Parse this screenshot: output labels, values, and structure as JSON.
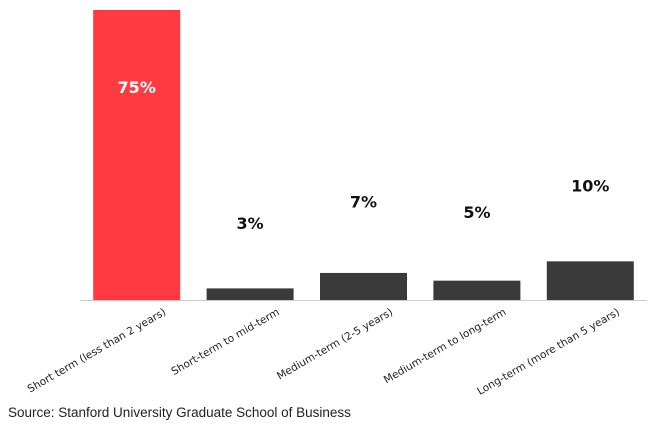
{
  "chart_data": {
    "type": "bar",
    "categories": [
      "Short term (less than 2 years)",
      "Short-term to mid-term",
      "Medium-term (2-5 years)",
      "Medium-term to long-term",
      "Long-term (more than 5 years)"
    ],
    "values": [
      75,
      3,
      7,
      5,
      10
    ],
    "data_labels": [
      "75%",
      "3%",
      "7%",
      "5%",
      "10%"
    ],
    "title": "",
    "xlabel": "",
    "ylabel": "",
    "ylim": [
      0,
      75
    ],
    "grid": false,
    "legend": "none",
    "colors": {
      "highlight": "#ff3a40",
      "default": "#3a3a3a",
      "highlight_label": "#ffffff",
      "default_label": "#111111",
      "baseline": "#cccccc"
    },
    "highlight_index": 0
  },
  "source": "Source: Stanford University Graduate School of Business"
}
